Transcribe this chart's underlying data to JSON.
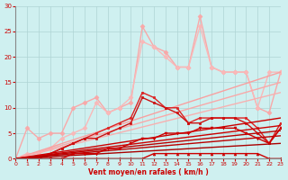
{
  "xlabel": "Vent moyen/en rafales ( km/h )",
  "ylabel": "",
  "xlim": [
    0,
    23
  ],
  "ylim": [
    0,
    30
  ],
  "xticks": [
    0,
    1,
    2,
    3,
    4,
    5,
    6,
    7,
    8,
    9,
    10,
    11,
    12,
    13,
    14,
    15,
    16,
    17,
    18,
    19,
    20,
    21,
    22,
    23
  ],
  "yticks": [
    0,
    5,
    10,
    15,
    20,
    25,
    30
  ],
  "background_color": "#cff0f0",
  "grid_color": "#aed4d4",
  "lines": [
    {
      "x": [
        0,
        1,
        2,
        3,
        4,
        5,
        6,
        7,
        8,
        9,
        10,
        11,
        12,
        13,
        14,
        15,
        16,
        17,
        18,
        19,
        20,
        21,
        22,
        23
      ],
      "y": [
        0,
        6,
        4,
        5,
        5,
        10,
        11,
        12,
        9,
        10,
        11,
        26,
        22,
        21,
        18,
        18,
        28,
        18,
        17,
        17,
        17,
        10,
        9,
        17
      ],
      "color": "#f9a8a8",
      "lw": 1.0,
      "marker": "D",
      "ms": 2.5,
      "linestyle": "-"
    },
    {
      "x": [
        0,
        1,
        2,
        3,
        4,
        5,
        6,
        7,
        8,
        9,
        10,
        11,
        12,
        13,
        14,
        15,
        16,
        17,
        18,
        19,
        20,
        21,
        22,
        23
      ],
      "y": [
        0,
        1,
        1,
        2,
        4,
        5,
        6,
        11,
        9,
        10,
        12,
        23,
        22,
        20,
        18,
        18,
        26,
        18,
        17,
        17,
        17,
        10,
        17,
        17
      ],
      "color": "#f9b8b8",
      "lw": 1.0,
      "marker": "D",
      "ms": 2.5,
      "linestyle": "-"
    },
    {
      "x": [
        0,
        23
      ],
      "y": [
        0,
        17
      ],
      "color": "#f9a0a0",
      "lw": 1.0,
      "marker": null,
      "ms": 0,
      "linestyle": "-"
    },
    {
      "x": [
        0,
        23
      ],
      "y": [
        0,
        15
      ],
      "color": "#f9a8a8",
      "lw": 1.0,
      "marker": null,
      "ms": 0,
      "linestyle": "-"
    },
    {
      "x": [
        0,
        23
      ],
      "y": [
        0,
        13
      ],
      "color": "#f8b0b0",
      "lw": 1.0,
      "marker": null,
      "ms": 0,
      "linestyle": "-"
    },
    {
      "x": [
        0,
        1,
        2,
        3,
        4,
        5,
        6,
        7,
        8,
        9,
        10,
        11,
        12,
        13,
        14,
        15,
        16,
        17,
        18,
        19,
        20,
        21,
        22,
        23
      ],
      "y": [
        0,
        0,
        0,
        1,
        2,
        3,
        4,
        5,
        6,
        7,
        8,
        13,
        12,
        10,
        10,
        7,
        8,
        8,
        8,
        8,
        8,
        6,
        3,
        7
      ],
      "color": "#dd2222",
      "lw": 1.0,
      "marker": "s",
      "ms": 2,
      "linestyle": "-"
    },
    {
      "x": [
        0,
        1,
        2,
        3,
        4,
        5,
        6,
        7,
        8,
        9,
        10,
        11,
        12,
        13,
        14,
        15,
        16,
        17,
        18,
        19,
        20,
        21,
        22,
        23
      ],
      "y": [
        0,
        0,
        0,
        1,
        2,
        3,
        4,
        4,
        5,
        6,
        7,
        12,
        11,
        10,
        9,
        7,
        7,
        8,
        8,
        8,
        7,
        5,
        3,
        6
      ],
      "color": "#cc1111",
      "lw": 1.0,
      "marker": "s",
      "ms": 2,
      "linestyle": "-"
    },
    {
      "x": [
        0,
        23
      ],
      "y": [
        0,
        8
      ],
      "color": "#cc0000",
      "lw": 1.0,
      "marker": null,
      "ms": 0,
      "linestyle": "-"
    },
    {
      "x": [
        0,
        23
      ],
      "y": [
        0,
        6.5
      ],
      "color": "#cc0000",
      "lw": 1.0,
      "marker": null,
      "ms": 0,
      "linestyle": "-"
    },
    {
      "x": [
        0,
        23
      ],
      "y": [
        0,
        5.5
      ],
      "color": "#bb0000",
      "lw": 1.0,
      "marker": null,
      "ms": 0,
      "linestyle": "-"
    },
    {
      "x": [
        0,
        23
      ],
      "y": [
        0,
        4.5
      ],
      "color": "#bb0000",
      "lw": 1.0,
      "marker": null,
      "ms": 0,
      "linestyle": "-"
    },
    {
      "x": [
        0,
        23
      ],
      "y": [
        0,
        3
      ],
      "color": "#aa0000",
      "lw": 1.0,
      "marker": null,
      "ms": 0,
      "linestyle": "-"
    },
    {
      "x": [
        0,
        1,
        2,
        3,
        4,
        5,
        6,
        7,
        8,
        9,
        10,
        11,
        12,
        13,
        14,
        15,
        16,
        17,
        18,
        19,
        20,
        21,
        22,
        23
      ],
      "y": [
        0,
        0,
        0,
        0,
        0,
        0,
        0,
        0,
        0,
        0,
        0,
        0,
        1,
        1,
        1,
        1,
        1,
        1,
        1,
        1,
        1,
        1,
        0,
        0
      ],
      "color": "#cc0000",
      "lw": 1.0,
      "marker": "^",
      "ms": 2,
      "linestyle": "-"
    },
    {
      "x": [
        0,
        1,
        2,
        3,
        4,
        5,
        6,
        7,
        8,
        9,
        10,
        11,
        12,
        13,
        14,
        15,
        16,
        17,
        18,
        19,
        20,
        21,
        22,
        23
      ],
      "y": [
        0,
        0,
        0,
        0,
        0,
        1,
        1,
        1,
        2,
        2,
        3,
        4,
        4,
        5,
        5,
        5,
        6,
        6,
        6,
        6,
        5,
        4,
        3,
        6
      ],
      "color": "#cc0000",
      "lw": 1.0,
      "marker": "v",
      "ms": 2,
      "linestyle": "-"
    }
  ]
}
